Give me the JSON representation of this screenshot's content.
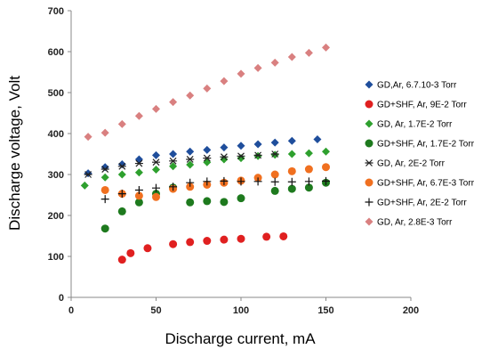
{
  "chart_data": {
    "type": "scatter",
    "title": "",
    "xlabel": "Discharge current, mA",
    "ylabel": "Discharge voltage, Volt",
    "xlim": [
      0,
      200
    ],
    "ylim": [
      0,
      700
    ],
    "xticks": [
      0,
      50,
      100,
      150,
      200
    ],
    "yticks": [
      0,
      100,
      200,
      300,
      400,
      500,
      600,
      700
    ],
    "grid": false,
    "legend_position": "right",
    "series": [
      {
        "name": "GD,Ar, 6.7.10-3 Torr",
        "marker": "diamond",
        "color": "#1f4e9c",
        "x": [
          10,
          20,
          30,
          40,
          50,
          60,
          70,
          80,
          90,
          100,
          110,
          120,
          130,
          145
        ],
        "y": [
          303,
          318,
          325,
          337,
          347,
          350,
          356,
          360,
          366,
          370,
          374,
          378,
          382,
          386
        ]
      },
      {
        "name": "GD+SHF, Ar, 9E-2 Torr",
        "marker": "circle",
        "color": "#e02020",
        "x": [
          30,
          35,
          45,
          60,
          70,
          80,
          90,
          100,
          115,
          125
        ],
        "y": [
          92,
          108,
          120,
          130,
          135,
          138,
          141,
          143,
          148,
          149
        ]
      },
      {
        "name": "GD, Ar, 1.7E-2 Torr",
        "marker": "diamond",
        "color": "#2ea02e",
        "x": [
          8,
          20,
          30,
          40,
          50,
          60,
          70,
          80,
          90,
          100,
          110,
          120,
          130,
          140,
          150
        ],
        "y": [
          273,
          293,
          300,
          305,
          312,
          320,
          324,
          330,
          337,
          340,
          345,
          348,
          350,
          352,
          356
        ]
      },
      {
        "name": "GD+SHF, Ar, 1.7E-2 Torr",
        "marker": "circle",
        "color": "#1e7a1e",
        "x": [
          20,
          30,
          40,
          50,
          60,
          70,
          80,
          90,
          100,
          120,
          130,
          140,
          150
        ],
        "y": [
          168,
          210,
          232,
          253,
          268,
          232,
          235,
          233,
          242,
          260,
          265,
          268,
          280
        ]
      },
      {
        "name": "GD, Ar, 2E-2 Torr",
        "marker": "asterisk",
        "color": "#222222",
        "x": [
          10,
          20,
          30,
          40,
          50,
          60,
          70,
          80,
          90,
          100,
          110,
          120
        ],
        "y": [
          300,
          313,
          320,
          327,
          330,
          333,
          337,
          340,
          343,
          345,
          347,
          350
        ]
      },
      {
        "name": "GD+SHF, Ar, 6.7E-3 Torr",
        "marker": "circle",
        "color": "#f07020",
        "x": [
          20,
          30,
          40,
          50,
          60,
          70,
          80,
          90,
          100,
          110,
          120,
          130,
          140,
          150
        ],
        "y": [
          262,
          253,
          248,
          245,
          265,
          270,
          275,
          280,
          285,
          292,
          300,
          308,
          313,
          318
        ]
      },
      {
        "name": "GD+SHF, Ar, 2E-2 Torr",
        "marker": "plus",
        "color": "#111111",
        "x": [
          20,
          30,
          40,
          50,
          60,
          70,
          80,
          90,
          100,
          110,
          120,
          130,
          140,
          150
        ],
        "y": [
          240,
          253,
          262,
          267,
          270,
          280,
          283,
          284,
          283,
          283,
          282,
          282,
          283,
          284
        ]
      },
      {
        "name": "GD, Ar, 2.8E-3 Torr",
        "marker": "diamond",
        "color": "#d98080",
        "x": [
          10,
          20,
          30,
          40,
          50,
          60,
          70,
          80,
          90,
          100,
          110,
          120,
          130,
          140,
          150
        ],
        "y": [
          392,
          402,
          423,
          443,
          460,
          477,
          493,
          510,
          528,
          546,
          560,
          573,
          587,
          597,
          610
        ]
      }
    ]
  }
}
